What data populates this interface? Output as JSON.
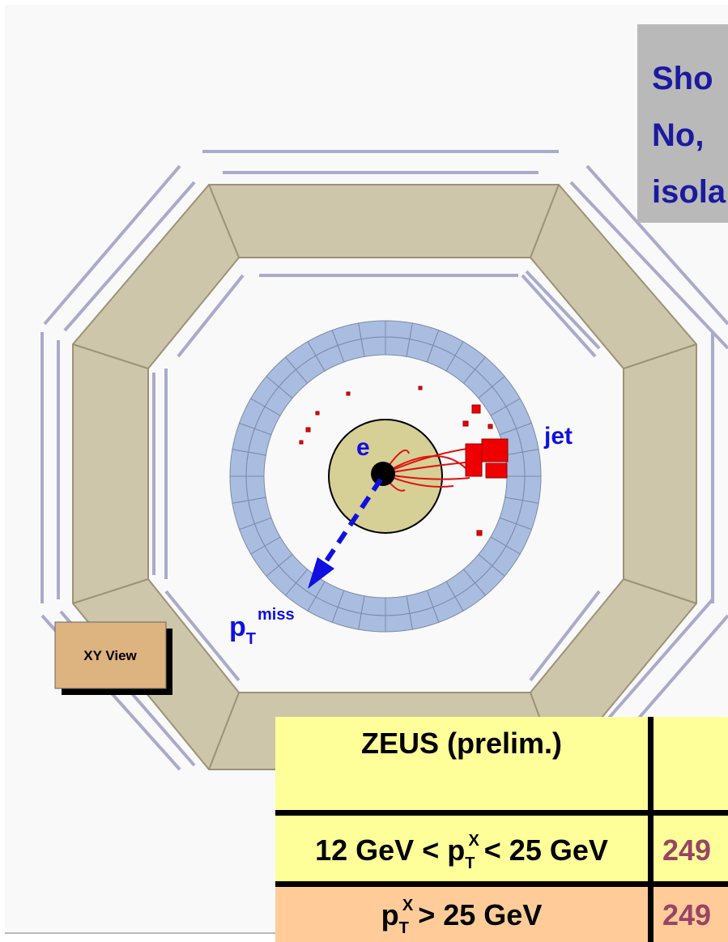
{
  "callout": {
    "lines": [
      "Sho",
      "No,",
      "isola"
    ]
  },
  "event_display": {
    "labels": {
      "electron": "e",
      "jet": "jet",
      "missing_pt": {
        "base": "p",
        "sub": "T",
        "sup": "miss"
      }
    }
  },
  "view_button": "XY View",
  "table": {
    "header": "ZEUS (prelim.)",
    "rows": [
      {
        "cut": {
          "pre": "12 GeV < p",
          "sub": "T",
          "sup": "X",
          "post": "< 25 GeV"
        },
        "value": 249
      },
      {
        "cut": {
          "pre": "p",
          "sub": "T",
          "sup": "X",
          "post": "> 25 GeV"
        },
        "value": 249
      }
    ]
  }
}
